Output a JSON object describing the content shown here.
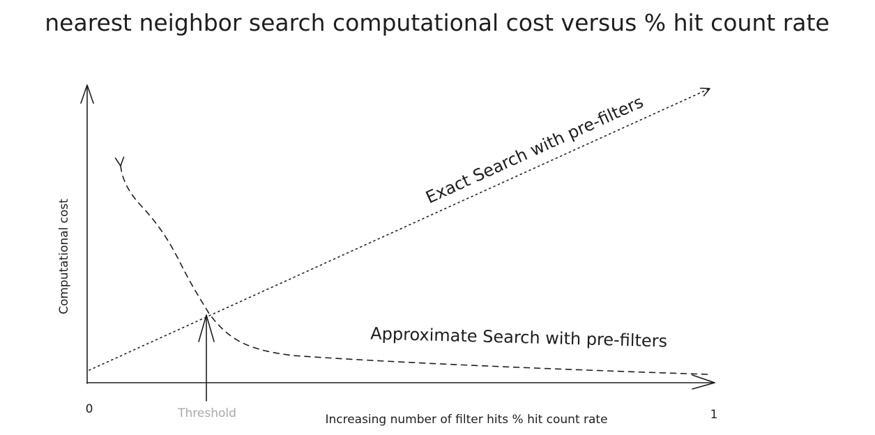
{
  "title": "nearest neighbor search computational cost versus % hit count rate",
  "x_axis": {
    "label": "Increasing number of filter hits % hit count rate",
    "min_label": "0",
    "max_label": "1"
  },
  "y_axis": {
    "label": "Computational cost"
  },
  "curves": [
    {
      "name": "Exact Search with pre-filters",
      "line_style": "dotted"
    },
    {
      "name": "Approximate Search with pre-filters",
      "line_style": "dashed"
    }
  ],
  "threshold": {
    "label": "Threshold"
  }
}
